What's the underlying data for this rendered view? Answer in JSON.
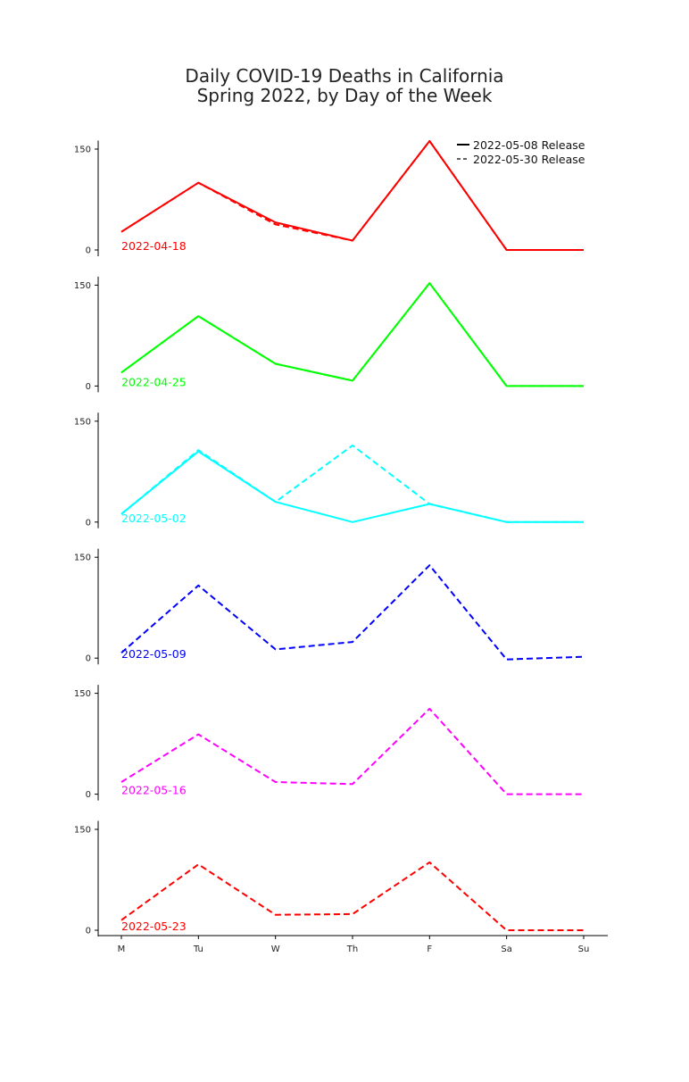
{
  "chart_data": {
    "type": "line",
    "title_line1": "Daily COVID-19 Deaths in California",
    "title_line2": "Spring 2022, by Day of the Week",
    "categories": [
      "M",
      "Tu",
      "W",
      "Th",
      "F",
      "Sa",
      "Su"
    ],
    "ylim": [
      0,
      160
    ],
    "yticks": [
      0,
      150
    ],
    "ytick_labels": [
      "0",
      "150"
    ],
    "grid": false,
    "legend_position": "top-right",
    "legend": [
      {
        "label": "2022-05-08 Release",
        "style": "solid"
      },
      {
        "label": "2022-05-30 Release",
        "style": "dashed"
      }
    ],
    "weeks": [
      {
        "label": "2022-04-18",
        "color": "#ff0000",
        "series": [
          {
            "release": "2022-05-08 Release",
            "style": "solid",
            "values": [
              27,
              100,
              41,
              14,
              162,
              0,
              0
            ]
          },
          {
            "release": "2022-05-30 Release",
            "style": "dashed",
            "values": [
              27,
              100,
              38,
              14,
              162,
              0,
              0
            ]
          }
        ]
      },
      {
        "label": "2022-04-25",
        "color": "#00ff00",
        "series": [
          {
            "release": "2022-05-08 Release",
            "style": "solid",
            "values": [
              20,
              104,
              33,
              8,
              153,
              0,
              0
            ]
          },
          {
            "release": "2022-05-30 Release",
            "style": "dashed",
            "values": [
              20,
              104,
              33,
              8,
              153,
              0,
              0
            ]
          }
        ]
      },
      {
        "label": "2022-05-02",
        "color": "#00ffff",
        "series": [
          {
            "release": "2022-05-08 Release",
            "style": "solid",
            "values": [
              12,
              105,
              30,
              0,
              27,
              0,
              0
            ]
          },
          {
            "release": "2022-05-30 Release",
            "style": "dashed",
            "values": [
              12,
              107,
              30,
              114,
              27,
              0,
              0
            ]
          }
        ]
      },
      {
        "label": "2022-05-09",
        "color": "#0000ff",
        "series": [
          {
            "release": "2022-05-30 Release",
            "style": "dashed",
            "values": [
              8,
              108,
              13,
              24,
              138,
              -2,
              2
            ]
          }
        ]
      },
      {
        "label": "2022-05-16",
        "color": "#ff00ff",
        "series": [
          {
            "release": "2022-05-30 Release",
            "style": "dashed",
            "values": [
              18,
              89,
              18,
              15,
              127,
              0,
              0
            ]
          }
        ]
      },
      {
        "label": "2022-05-23",
        "color": "#ff0000",
        "series": [
          {
            "release": "2022-05-30 Release",
            "style": "dashed",
            "values": [
              15,
              98,
              23,
              24,
              101,
              0,
              0
            ]
          }
        ]
      }
    ]
  }
}
